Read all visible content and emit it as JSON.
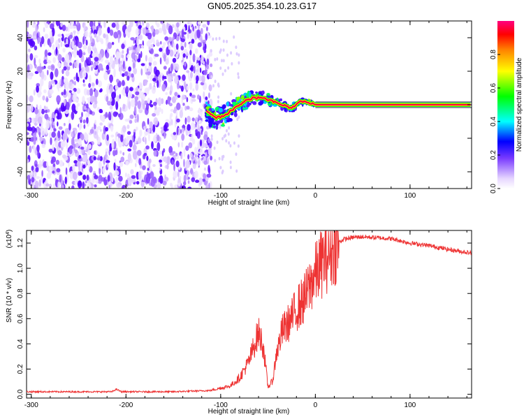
{
  "title": "GN05.2025.354.10.23.G17",
  "chart_data": [
    {
      "type": "heatmap",
      "xlabel": "Height of straight line (km)",
      "ylabel": "Frequency (Hz)",
      "xlim": [
        -305,
        165
      ],
      "ylim": [
        -50,
        50
      ],
      "xticks": [
        -300,
        -200,
        -100,
        0,
        100
      ],
      "yticks": [
        -40,
        -20,
        0,
        20,
        40
      ],
      "grid": false,
      "noise_region_x": [
        -305,
        -110
      ],
      "signal_track": {
        "x": [
          -115,
          -105,
          -95,
          -85,
          -75,
          -65,
          -55,
          -45,
          -35,
          -25,
          -15,
          -5,
          0,
          50,
          100,
          165
        ],
        "freq": [
          -4,
          -8,
          -6,
          -2,
          2,
          4,
          4,
          2,
          0,
          -2,
          2,
          1,
          0,
          0,
          0,
          0
        ]
      },
      "colorbar": {
        "label": "Normalized spectral amplitude",
        "range": [
          0.0,
          1.0
        ],
        "ticks": [
          0.0,
          0.2,
          0.4,
          0.6,
          0.8
        ],
        "tick_labels": [
          "0.0",
          "0.2",
          "0.4",
          "0.6",
          "0.8"
        ]
      }
    },
    {
      "type": "line",
      "xlabel": "Height of straight line (km)",
      "ylabel": "SNR (10 * v/v)",
      "scale_label": "(x10^4)",
      "scale_base": "(x10",
      "scale_exp": "4",
      "scale_close": ")",
      "xlim": [
        -305,
        165
      ],
      "ylim": [
        -0.03,
        1.3
      ],
      "xticks": [
        -300,
        -200,
        -100,
        0,
        100
      ],
      "yticks": [
        0.0,
        0.2,
        0.4,
        0.6,
        0.8,
        1.0,
        1.2
      ],
      "ytick_labels": [
        "0.0",
        "0.2",
        "0.4",
        "0.6",
        "0.8",
        "1.0",
        "1.2"
      ],
      "grid": false,
      "color": "#ee3333",
      "series": [
        {
          "x": [
            -305,
            -250,
            -215,
            -210,
            -205,
            -150,
            -110,
            -90,
            -80,
            -70,
            -65,
            -60,
            -55,
            -50,
            -45,
            -40,
            -35,
            -30,
            -25,
            -20,
            -15,
            -10,
            -5,
            0,
            5,
            10,
            15,
            20,
            25,
            30,
            40,
            50,
            60,
            80,
            100,
            120,
            140,
            165
          ],
          "values": [
            0.02,
            0.02,
            0.02,
            0.04,
            0.02,
            0.02,
            0.03,
            0.06,
            0.12,
            0.24,
            0.35,
            0.45,
            0.35,
            0.05,
            0.1,
            0.35,
            0.5,
            0.55,
            0.6,
            0.68,
            0.72,
            0.78,
            0.88,
            0.95,
            1.02,
            1.08,
            1.12,
            1.18,
            1.21,
            1.23,
            1.245,
            1.25,
            1.245,
            1.235,
            1.2,
            1.18,
            1.15,
            1.12
          ]
        }
      ]
    }
  ]
}
